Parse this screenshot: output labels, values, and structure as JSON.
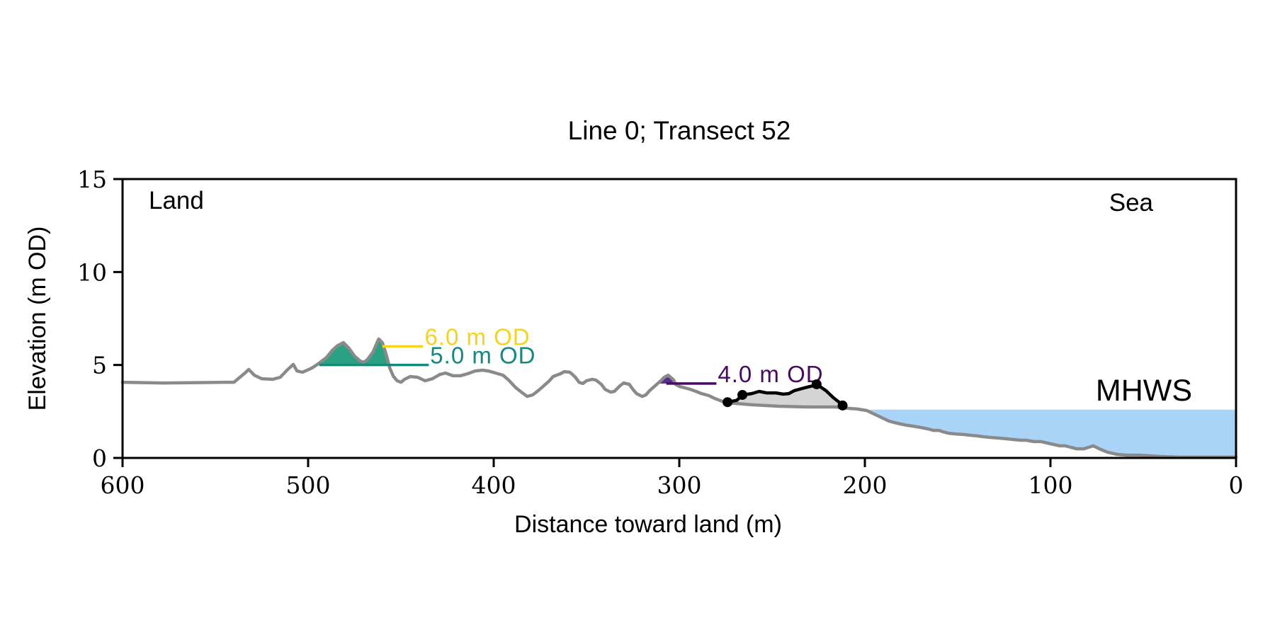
{
  "title": "Line 0; Transect 52",
  "axes": {
    "xlabel": "Distance toward land (m)",
    "ylabel": "Elevation (m OD)",
    "xticks": [
      600,
      500,
      400,
      300,
      200,
      100,
      0
    ],
    "yticks": [
      0,
      5,
      10,
      15
    ],
    "xlim": [
      600,
      0
    ],
    "ylim": [
      0,
      15
    ],
    "x_reversed": true
  },
  "labels": {
    "land": "Land",
    "sea": "Sea",
    "mhws": "MHWS",
    "mhws_color": "#6b9dd4"
  },
  "colors": {
    "terrain_line": "#8a8a8a",
    "beach_line": "#000000",
    "beach_fill": "#d4d4d4",
    "water_fill": "#a9d3f7",
    "axis": "#000000"
  },
  "chart_data": {
    "type": "line",
    "title": "Line 0; Transect 52",
    "xlabel": "Distance toward land (m)",
    "ylabel": "Elevation (m OD)",
    "xlim": [
      600,
      0
    ],
    "ylim": [
      0,
      15
    ],
    "legend": "none",
    "grid": false,
    "series": [
      {
        "name": "terrain-profile",
        "color": "#8a8a8a",
        "points": [
          [
            600,
            4.07
          ],
          [
            578,
            4.03
          ],
          [
            560,
            4.05
          ],
          [
            545,
            4.07
          ],
          [
            540,
            4.07
          ],
          [
            534,
            4.57
          ],
          [
            532,
            4.76
          ],
          [
            529,
            4.45
          ],
          [
            525,
            4.26
          ],
          [
            519,
            4.23
          ],
          [
            515,
            4.34
          ],
          [
            511,
            4.76
          ],
          [
            508,
            5.03
          ],
          [
            506,
            4.68
          ],
          [
            503,
            4.61
          ],
          [
            498,
            4.83
          ],
          [
            494,
            5.1
          ],
          [
            490,
            5.41
          ],
          [
            487,
            5.79
          ],
          [
            484,
            6.05
          ],
          [
            481,
            6.2
          ],
          [
            478,
            5.9
          ],
          [
            475,
            5.48
          ],
          [
            472,
            5.22
          ],
          [
            470,
            5.14
          ],
          [
            468,
            5.29
          ],
          [
            465,
            5.71
          ],
          [
            462,
            6.4
          ],
          [
            460,
            6.2
          ],
          [
            458,
            5.6
          ],
          [
            456,
            4.83
          ],
          [
            454,
            4.38
          ],
          [
            452,
            4.15
          ],
          [
            450,
            4.07
          ],
          [
            448,
            4.23
          ],
          [
            445,
            4.38
          ],
          [
            441,
            4.34
          ],
          [
            437,
            4.15
          ],
          [
            433,
            4.26
          ],
          [
            429,
            4.49
          ],
          [
            426,
            4.57
          ],
          [
            422,
            4.42
          ],
          [
            418,
            4.42
          ],
          [
            414,
            4.53
          ],
          [
            410,
            4.68
          ],
          [
            406,
            4.72
          ],
          [
            403,
            4.68
          ],
          [
            399,
            4.57
          ],
          [
            395,
            4.45
          ],
          [
            392,
            4.19
          ],
          [
            388,
            3.77
          ],
          [
            384,
            3.46
          ],
          [
            382,
            3.31
          ],
          [
            379,
            3.39
          ],
          [
            376,
            3.62
          ],
          [
            373,
            3.88
          ],
          [
            370,
            4.15
          ],
          [
            368,
            4.38
          ],
          [
            364,
            4.53
          ],
          [
            362,
            4.64
          ],
          [
            359,
            4.61
          ],
          [
            358,
            4.53
          ],
          [
            356,
            4.34
          ],
          [
            354,
            4.07
          ],
          [
            352,
            4.0
          ],
          [
            350,
            4.15
          ],
          [
            347,
            4.23
          ],
          [
            345,
            4.19
          ],
          [
            342,
            3.96
          ],
          [
            340,
            3.69
          ],
          [
            337,
            3.54
          ],
          [
            335,
            3.58
          ],
          [
            332,
            3.88
          ],
          [
            330,
            4.03
          ],
          [
            327,
            3.96
          ],
          [
            325,
            3.69
          ],
          [
            323,
            3.46
          ],
          [
            320,
            3.31
          ],
          [
            318,
            3.39
          ],
          [
            316,
            3.62
          ],
          [
            313,
            3.88
          ],
          [
            310,
            4.15
          ],
          [
            308,
            4.34
          ],
          [
            306,
            4.45
          ],
          [
            303,
            4.19
          ],
          [
            302,
            3.96
          ],
          [
            300,
            3.85
          ],
          [
            297,
            3.77
          ],
          [
            294,
            3.69
          ],
          [
            291,
            3.58
          ],
          [
            288,
            3.46
          ],
          [
            284,
            3.35
          ],
          [
            281,
            3.2
          ],
          [
            277,
            3.05
          ],
          [
            274,
            2.97
          ],
          [
            261,
            2.86
          ],
          [
            246,
            2.78
          ],
          [
            231,
            2.74
          ],
          [
            216,
            2.74
          ],
          [
            212,
            2.7
          ],
          [
            208,
            2.66
          ],
          [
            204,
            2.63
          ],
          [
            199,
            2.55
          ],
          [
            195,
            2.36
          ],
          [
            191,
            2.17
          ],
          [
            187,
            1.98
          ],
          [
            184,
            1.9
          ],
          [
            181,
            1.83
          ],
          [
            177,
            1.75
          ],
          [
            174,
            1.71
          ],
          [
            170,
            1.64
          ],
          [
            166,
            1.56
          ],
          [
            163,
            1.48
          ],
          [
            160,
            1.48
          ],
          [
            158,
            1.41
          ],
          [
            155,
            1.33
          ],
          [
            151,
            1.29
          ],
          [
            147,
            1.26
          ],
          [
            143,
            1.22
          ],
          [
            139,
            1.18
          ],
          [
            136,
            1.14
          ],
          [
            132,
            1.1
          ],
          [
            128,
            1.07
          ],
          [
            124,
            1.03
          ],
          [
            120,
            0.99
          ],
          [
            116,
            0.95
          ],
          [
            113,
            0.95
          ],
          [
            109,
            0.88
          ],
          [
            105,
            0.88
          ],
          [
            100,
            0.76
          ],
          [
            95,
            0.65
          ],
          [
            92,
            0.65
          ],
          [
            89,
            0.57
          ],
          [
            86,
            0.49
          ],
          [
            82,
            0.49
          ],
          [
            77,
            0.65
          ],
          [
            73,
            0.46
          ],
          [
            69,
            0.3
          ],
          [
            64,
            0.19
          ],
          [
            59,
            0.15
          ],
          [
            52,
            0.15
          ],
          [
            41,
            0.08
          ],
          [
            31,
            0.04
          ],
          [
            21,
            0.04
          ],
          [
            11,
            0.04
          ],
          [
            0,
            0.04
          ]
        ]
      },
      {
        "name": "beach-profile",
        "color": "#000000",
        "fill": "#d4d4d4",
        "points": [
          [
            274,
            3.0
          ],
          [
            269,
            3.1
          ],
          [
            266,
            3.39
          ],
          [
            261,
            3.46
          ],
          [
            257,
            3.58
          ],
          [
            253,
            3.5
          ],
          [
            248,
            3.5
          ],
          [
            244,
            3.43
          ],
          [
            241,
            3.46
          ],
          [
            238,
            3.62
          ],
          [
            234,
            3.73
          ],
          [
            231,
            3.81
          ],
          [
            227,
            3.9
          ],
          [
            226,
            3.96
          ],
          [
            221,
            3.62
          ],
          [
            217,
            3.24
          ],
          [
            213,
            2.93
          ],
          [
            212,
            2.82
          ]
        ],
        "markers": [
          [
            274,
            3.0
          ],
          [
            266,
            3.39
          ],
          [
            226,
            3.96
          ],
          [
            212,
            2.82
          ]
        ]
      }
    ],
    "annotations": [
      {
        "label": "6.0 m OD",
        "level": 6.0,
        "line_color": "#f4d41f",
        "fill_color": "#f4d41f",
        "line_from": 460,
        "line_to": 438,
        "fill_range": [
          490,
          455
        ]
      },
      {
        "label": "5.0 m OD",
        "level": 5.0,
        "line_color": "#14897c",
        "fill_color": "#2aa183",
        "line_from": 494,
        "line_to": 435,
        "fill_range": [
          500,
          450
        ]
      },
      {
        "label": "4.0 m OD",
        "level": 4.0,
        "line_color": "#470b63",
        "fill_color": "#5a2d8a",
        "line_from": 307,
        "line_to": 280,
        "fill_range": [
          315,
          295
        ]
      }
    ],
    "mhws": {
      "label": "MHWS",
      "level": 2.6,
      "fill_color": "#a9d3f7",
      "text_color": "#6b9dd4",
      "range": [
        0,
        205
      ]
    }
  }
}
